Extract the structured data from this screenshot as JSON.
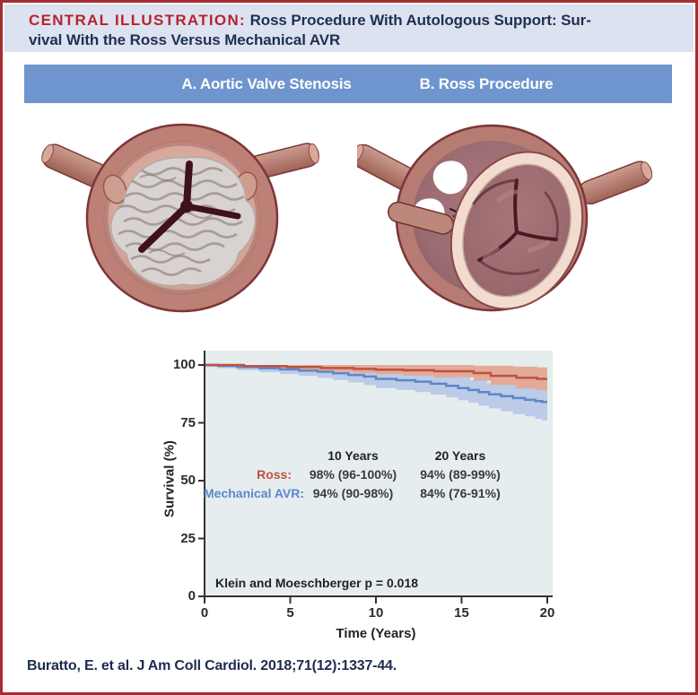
{
  "title": {
    "label": "CENTRAL ILLUSTRATION:",
    "line1": " Ross Procedure With Autologous Support: Sur-",
    "line2": "vival With the Ross Versus Mechanical AVR"
  },
  "panels": {
    "a_label": "A. Aortic Valve Stenosis",
    "b_label": "B. Ross Procedure"
  },
  "citation": "Buratto, E. et al. J Am Coll Cardiol. 2018;71(12):1337-44.",
  "colors": {
    "frame_border": "#a42d31",
    "title_bg": "#dde2f0",
    "title_red": "#b7242c",
    "title_navy": "#1e3050",
    "panel_bar_blue": "#6e95cd",
    "chart_bg": "#e6edee",
    "ross_line": "#bf5240",
    "ross_band": "#e3ab97",
    "mech_line": "#5d87c9",
    "mech_band": "#bccbe8",
    "axis": "#333333"
  },
  "chart_data": {
    "type": "line",
    "subtype": "kaplan-meier-step",
    "xlabel": "Time (Years)",
    "ylabel": "Survival (%)",
    "xlim": [
      0,
      20
    ],
    "ylim": [
      0,
      100
    ],
    "xticks": [
      0,
      5,
      10,
      15,
      20
    ],
    "yticks": [
      100,
      75,
      50,
      25,
      0
    ],
    "grid": false,
    "annotation": "Klein and Moeschberger p = 0.018",
    "stats_table": {
      "headers": [
        "10 Years",
        "20 Years"
      ],
      "rows": [
        {
          "label": "Ross:",
          "values": [
            "98% (96-100%)",
            "94% (89-99%)"
          ]
        },
        {
          "label": "Mechanical AVR:",
          "values": [
            "94% (90-98%)",
            "84% (76-91%)"
          ]
        }
      ]
    },
    "series": [
      {
        "name": "Mechanical AVR",
        "color": "#5d87c9",
        "band_color": "#bccbe8",
        "steps": [
          [
            0,
            100
          ],
          [
            0.8,
            99.6
          ],
          [
            1.9,
            99.1
          ],
          [
            3.2,
            98.6
          ],
          [
            4.4,
            98.1
          ],
          [
            5.5,
            97.6
          ],
          [
            6.6,
            97.1
          ],
          [
            7.5,
            96.4
          ],
          [
            8.4,
            95.7
          ],
          [
            9.3,
            95
          ],
          [
            10,
            94
          ],
          [
            11.2,
            93.4
          ],
          [
            12.3,
            92.8
          ],
          [
            13.2,
            91.9
          ],
          [
            14.1,
            91
          ],
          [
            14.8,
            90
          ],
          [
            15.4,
            89.2
          ],
          [
            16,
            88.3
          ],
          [
            16.6,
            87.3
          ],
          [
            17.3,
            86.5
          ],
          [
            18,
            85.7
          ],
          [
            18.7,
            85
          ],
          [
            19.3,
            84.4
          ],
          [
            19.7,
            84
          ]
        ],
        "ci_upper": [
          [
            0,
            100
          ],
          [
            2.5,
            99.7
          ],
          [
            5,
            99.3
          ],
          [
            7,
            98.8
          ],
          [
            8.5,
            98.4
          ],
          [
            10,
            98
          ],
          [
            11.5,
            97
          ],
          [
            13,
            95.8
          ],
          [
            14.5,
            94.6
          ],
          [
            15.5,
            93.4
          ],
          [
            16.5,
            92.2
          ],
          [
            17.5,
            91.5
          ],
          [
            18.5,
            91.2
          ],
          [
            19.4,
            91
          ]
        ],
        "ci_lower": [
          [
            0,
            99.2
          ],
          [
            0.8,
            98.6
          ],
          [
            1.9,
            97.8
          ],
          [
            3.2,
            96.9
          ],
          [
            4.4,
            96.1
          ],
          [
            5.5,
            95.3
          ],
          [
            6.6,
            94.4
          ],
          [
            7.5,
            93.5
          ],
          [
            8.4,
            92.5
          ],
          [
            9.3,
            91.3
          ],
          [
            10,
            90
          ],
          [
            11.2,
            89.2
          ],
          [
            12.3,
            88.3
          ],
          [
            13.2,
            87.2
          ],
          [
            14.1,
            86
          ],
          [
            14.8,
            84.8
          ],
          [
            15.4,
            83.6
          ],
          [
            16,
            82.4
          ],
          [
            16.6,
            81.2
          ],
          [
            17.3,
            80
          ],
          [
            18,
            78.8
          ],
          [
            18.7,
            77.8
          ],
          [
            19.3,
            76.8
          ],
          [
            19.7,
            76
          ]
        ]
      },
      {
        "name": "Ross",
        "color": "#bf5240",
        "band_color": "#e3ab97",
        "steps": [
          [
            0,
            100
          ],
          [
            2.3,
            99.5
          ],
          [
            4.8,
            99.1
          ],
          [
            6.8,
            98.7
          ],
          [
            8.7,
            98.3
          ],
          [
            10,
            98
          ],
          [
            11.6,
            97.7
          ],
          [
            13.4,
            97.3
          ],
          [
            15.7,
            96.5
          ],
          [
            16.7,
            95.3
          ],
          [
            18.2,
            94.5
          ],
          [
            19.4,
            94
          ]
        ],
        "ci_upper": [
          [
            0,
            100
          ],
          [
            13,
            100
          ],
          [
            15.7,
            99.7
          ],
          [
            18,
            99.3
          ],
          [
            19.4,
            99
          ]
        ],
        "ci_lower": [
          [
            0,
            100
          ],
          [
            1.2,
            99.2
          ],
          [
            2.3,
            98.6
          ],
          [
            4.8,
            97.9
          ],
          [
            6.8,
            97.1
          ],
          [
            8.7,
            96.5
          ],
          [
            10,
            96
          ],
          [
            11.6,
            95.4
          ],
          [
            13.4,
            94.6
          ],
          [
            15.7,
            93.2
          ],
          [
            16.7,
            91.4
          ],
          [
            18.2,
            89.8
          ],
          [
            19.4,
            89
          ]
        ]
      }
    ]
  }
}
